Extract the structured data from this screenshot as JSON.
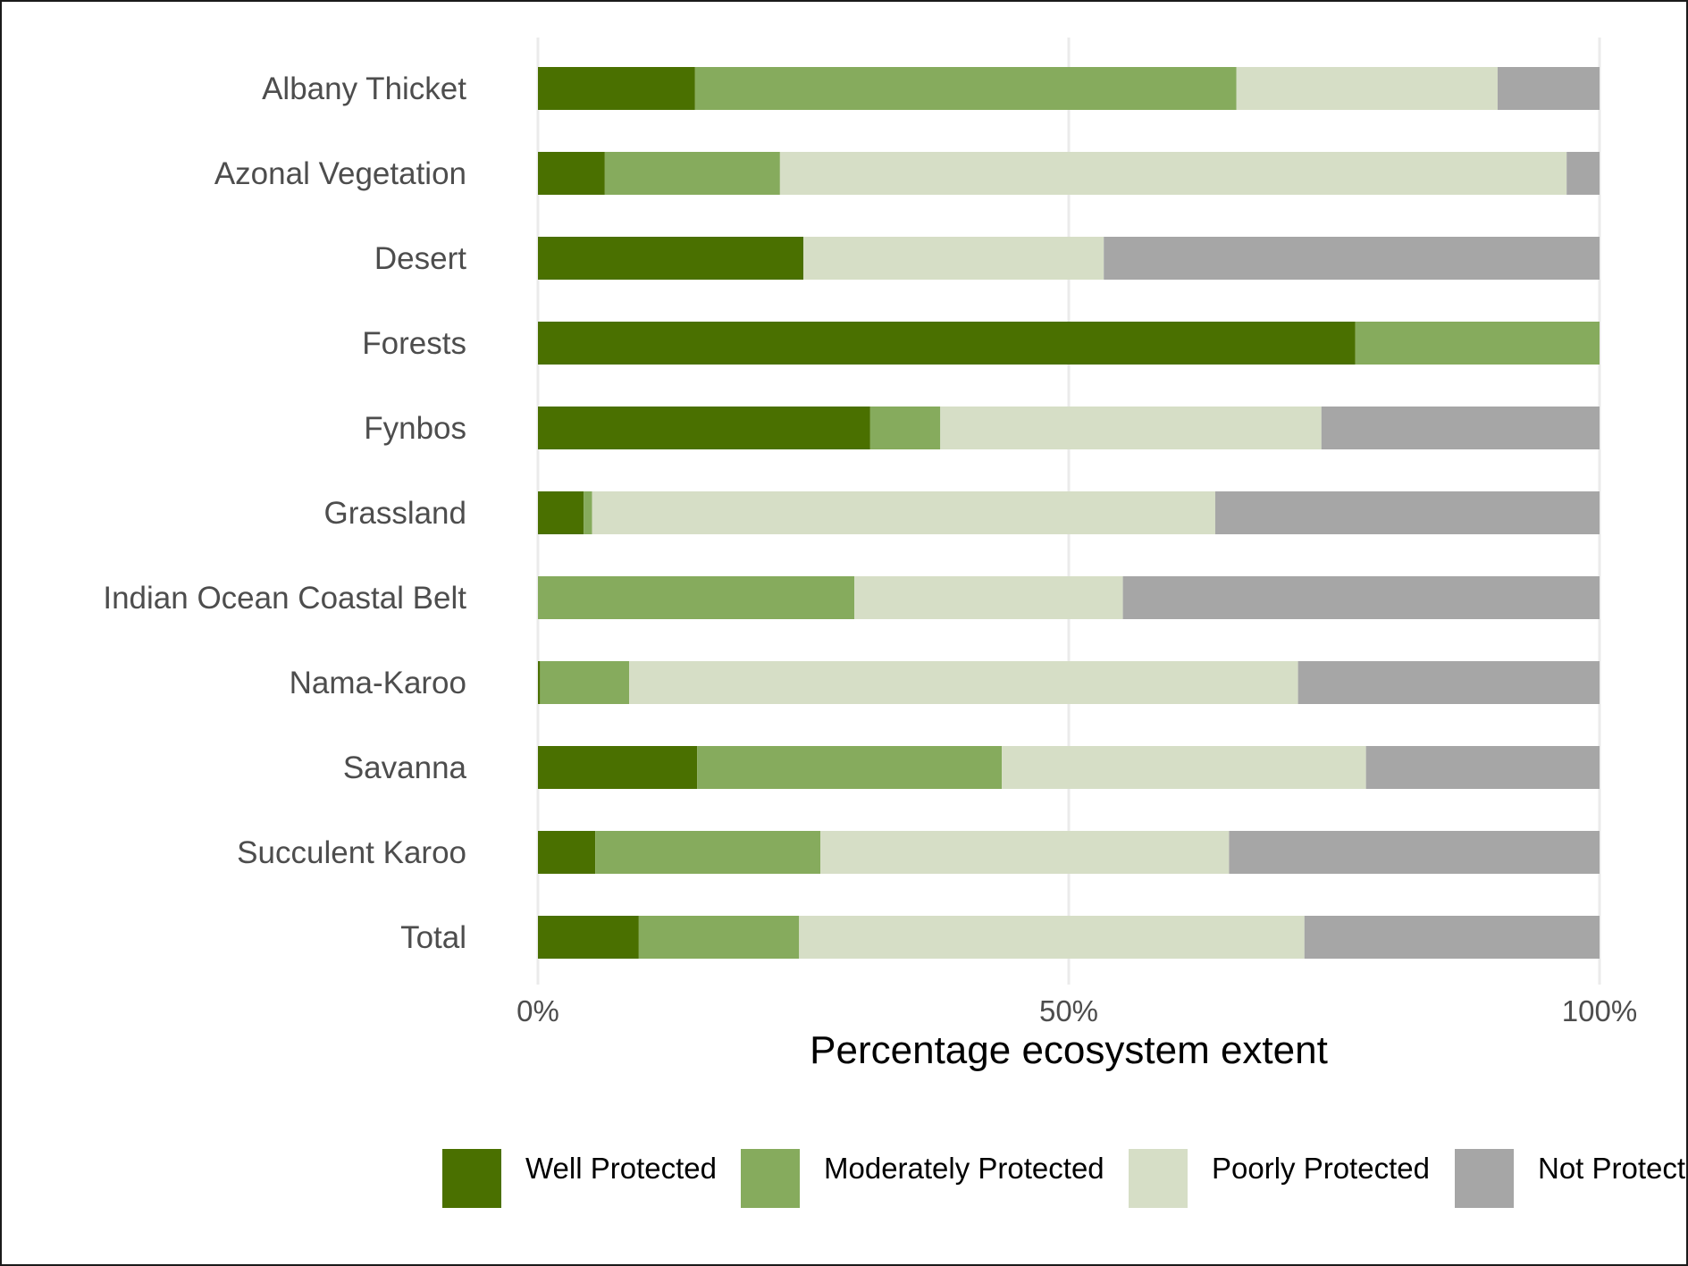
{
  "chart_data": {
    "type": "bar",
    "orientation": "horizontal",
    "stacked": true,
    "normalized": true,
    "title": "",
    "xlabel": "Percentage ecosystem extent",
    "ylabel": "",
    "xlim": [
      0,
      100
    ],
    "x_ticks": [
      "0%",
      "50%",
      "100%"
    ],
    "grid": true,
    "legend_position": "bottom",
    "categories": [
      "Albany Thicket",
      "Azonal Vegetation",
      "Desert",
      "Forests",
      "Fynbos",
      "Grassland",
      "Indian Ocean Coastal Belt",
      "Nama-Karoo",
      "Savanna",
      "Succulent Karoo",
      "Total"
    ],
    "series": [
      {
        "name": "Well Protected",
        "color": "#4a7000",
        "values": [
          14.8,
          6.3,
          25.0,
          77.0,
          31.3,
          4.3,
          0.0,
          0.2,
          15.0,
          5.4,
          9.5
        ]
      },
      {
        "name": "Moderately Protected",
        "color": "#86ab5d",
        "values": [
          51.0,
          16.5,
          0.0,
          23.0,
          6.6,
          0.8,
          29.8,
          8.4,
          28.7,
          21.2,
          15.1
        ]
      },
      {
        "name": "Poorly Protected",
        "color": "#d6dec6",
        "values": [
          24.6,
          74.1,
          28.3,
          0.0,
          35.9,
          58.7,
          25.3,
          63.0,
          34.3,
          38.5,
          47.6
        ]
      },
      {
        "name": "Not Protected",
        "color": "#a6a6a6",
        "values": [
          9.6,
          3.1,
          46.7,
          0.0,
          26.2,
          36.2,
          44.9,
          28.4,
          22.0,
          34.9,
          27.8
        ]
      }
    ]
  }
}
